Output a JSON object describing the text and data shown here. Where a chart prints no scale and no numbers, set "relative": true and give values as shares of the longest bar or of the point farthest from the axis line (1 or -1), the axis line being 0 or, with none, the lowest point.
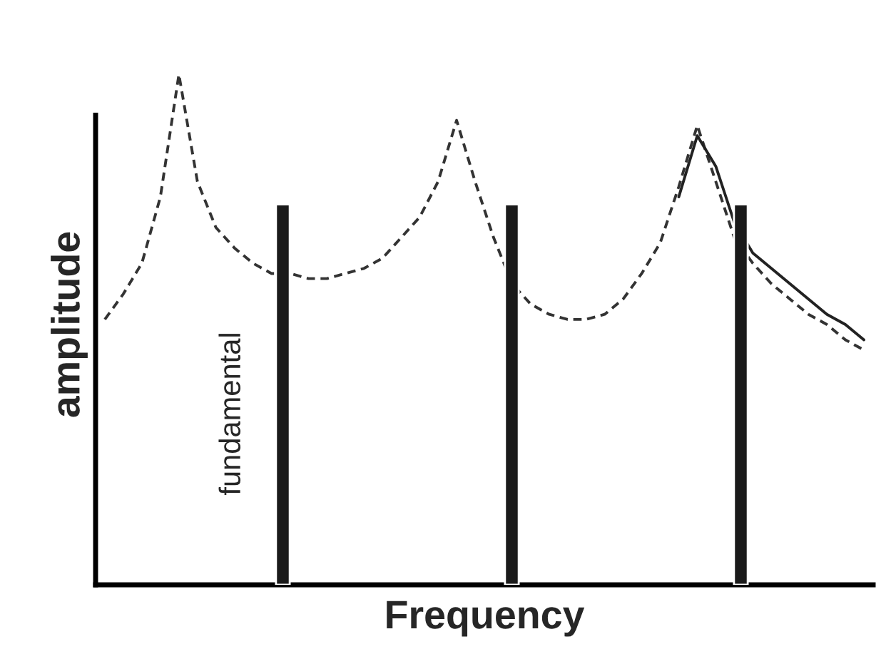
{
  "chart_data": [
    {
      "type": "line",
      "xlabel": "Frequency",
      "ylabel": "amplitude",
      "relative": true,
      "categories": [
        null,
        null,
        null,
        null,
        null,
        null,
        null,
        null,
        null,
        null,
        null,
        null,
        null,
        null,
        null,
        null,
        null,
        null,
        null,
        null,
        null,
        null,
        null,
        null,
        null,
        null,
        null,
        null,
        null,
        null,
        null,
        null,
        null,
        null,
        null,
        null,
        null,
        null,
        null,
        null,
        null,
        null
      ],
      "series": [
        {
          "line_style": "dashed",
          "color": "#333333",
          "values": [
            0.52,
            0.57,
            0.63,
            0.76,
            1,
            0.79,
            0.7,
            0.66,
            0.63,
            0.61,
            0.61,
            0.6,
            0.6,
            0.61,
            0.62,
            0.64,
            0.68,
            0.72,
            0.79,
            0.91,
            0.79,
            0.68,
            0.59,
            0.55,
            0.53,
            0.52,
            0.52,
            0.53,
            0.56,
            0.61,
            0.67,
            0.78,
            0.9,
            0.79,
            0.68,
            0.63,
            0.59,
            0.56,
            0.53,
            0.51,
            0.48,
            0.46
          ]
        },
        {
          "line_style": "solid",
          "color": "#222222",
          "values": [
            null,
            null,
            null,
            null,
            null,
            null,
            null,
            null,
            null,
            null,
            null,
            null,
            null,
            null,
            null,
            null,
            null,
            null,
            null,
            null,
            null,
            null,
            null,
            null,
            null,
            null,
            null,
            null,
            null,
            null,
            null,
            0.76,
            0.88,
            0.82,
            0.71,
            0.65,
            0.62,
            0.59,
            0.56,
            0.53,
            0.51,
            0.48
          ]
        }
      ]
    },
    {
      "type": "bar",
      "relative": true,
      "categories": [
        null,
        null,
        null
      ],
      "values": [
        1,
        1,
        1
      ],
      "color": "#1a1a1a",
      "annotations": [
        "fundamental"
      ]
    }
  ]
}
